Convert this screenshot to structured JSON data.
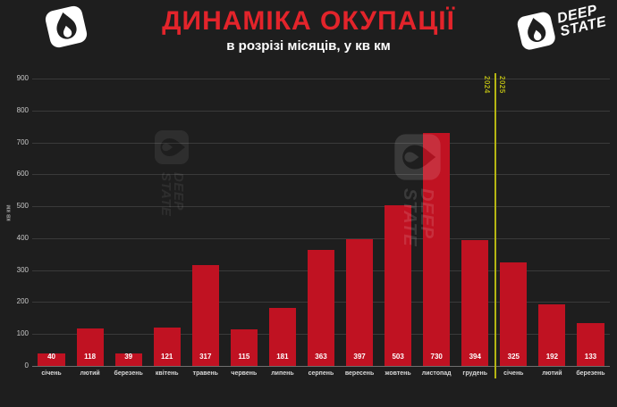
{
  "header": {
    "title": "ДИНАМІКА ОКУПАЦІЇ",
    "subtitle": "в розрізі місяців, у кв км"
  },
  "logo": {
    "line1": "DEEP",
    "line2": "STATE"
  },
  "chart_data": {
    "type": "bar",
    "title": "ДИНАМІКА ОКУПАЦІЇ",
    "subtitle": "в розрізі місяців, у кв км",
    "ylabel": "кв км",
    "xlabel": "",
    "ylim": [
      0,
      900
    ],
    "yticks": [
      0,
      100,
      200,
      300,
      400,
      500,
      600,
      700,
      800,
      900
    ],
    "grid": true,
    "legend": "none",
    "categories": [
      "січень",
      "лютий",
      "березень",
      "квітень",
      "травень",
      "червень",
      "липень",
      "серпень",
      "вересень",
      "жовтень",
      "листопад",
      "грудень",
      "січень",
      "лютий",
      "березень"
    ],
    "values": [
      40,
      118,
      39,
      121,
      317,
      115,
      181,
      363,
      397,
      503,
      730,
      394,
      325,
      192,
      133
    ],
    "bar_color": "#c01222",
    "year_divider": {
      "position_after_index": 11,
      "left_label": "2024",
      "right_label": "2025",
      "color": "#b5b513"
    }
  },
  "colors": {
    "background": "#1e1e1e",
    "title_red": "#e3242b",
    "bar_red": "#c01222",
    "gridline": "#3a3a3a",
    "axis_text": "#c8c8c8",
    "divider_yellow": "#b5b513"
  }
}
